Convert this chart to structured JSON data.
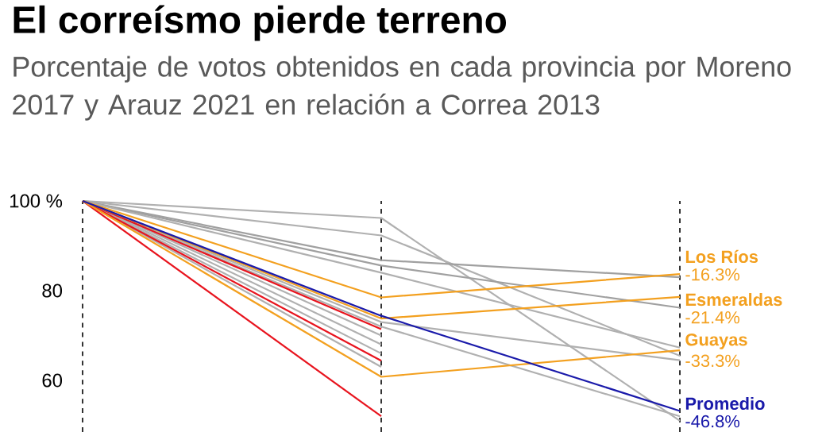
{
  "chart_data": {
    "type": "line",
    "title": "El correísmo pierde terreno",
    "subtitle": "Porcentaje de votos obtenidos en cada provincia por Moreno 2017 y Arauz 2021 en relación a Correa 2013",
    "categories": [
      null,
      null,
      null
    ],
    "ylim": [
      48.5,
      100
    ],
    "yticks": [
      {
        "value": 100,
        "label": "100 %"
      },
      80,
      60
    ],
    "grid": "x",
    "tick_labels": "y",
    "marker": "none",
    "line_style": "solid",
    "legend": false,
    "annotations": [
      "-16.3%",
      "-21.4%",
      "-33.3%",
      "-46.8%"
    ],
    "series": [
      {
        "color": "#b0b0b0",
        "values": [
          100,
          96.2,
          51.0
        ]
      },
      {
        "color": "#b0b0b0",
        "values": [
          100,
          92.3,
          65.5
        ]
      },
      {
        "color": "#a0a0a0",
        "values": [
          100,
          86.8,
          83.0
        ]
      },
      {
        "color": "#a0a0a0",
        "values": [
          100,
          85.6,
          76.2
        ]
      },
      {
        "color": "#b0b0b0",
        "values": [
          100,
          84.0,
          67.3
        ]
      },
      {
        "color": "#b0b0b0",
        "values": [
          100,
          73.0,
          64.5
        ]
      },
      {
        "color": "#b0b0b0",
        "values": [
          100,
          72.0,
          52.0
        ]
      },
      {
        "color": "#b0b0b0",
        "values": [
          100,
          70.0,
          null
        ]
      },
      {
        "color": "#b0b0b0",
        "values": [
          100,
          68.0,
          null
        ]
      },
      {
        "color": "#b0b0b0",
        "values": [
          100,
          66.0,
          null
        ]
      },
      {
        "color": "#b0b0b0",
        "values": [
          100,
          63.0,
          null
        ]
      },
      {
        "color": "#e8141e",
        "values": [
          100,
          71.4,
          null
        ]
      },
      {
        "color": "#e8141e",
        "values": [
          100,
          64.4,
          null
        ]
      },
      {
        "color": "#e8141e",
        "values": [
          100,
          52.0,
          null
        ]
      },
      {
        "name": "Los Ríos",
        "color": "#f3a01f",
        "values": [
          100,
          78.5,
          83.7
        ]
      },
      {
        "name": "Esmeraldas",
        "color": "#f3a01f",
        "values": [
          100,
          73.8,
          78.6
        ]
      },
      {
        "name": "Guayas",
        "color": "#f3a01f",
        "values": [
          100,
          60.8,
          66.7
        ]
      },
      {
        "name": "Promedio",
        "color": "#1a1aaa",
        "values": [
          100,
          74.4,
          53.2
        ]
      }
    ]
  }
}
